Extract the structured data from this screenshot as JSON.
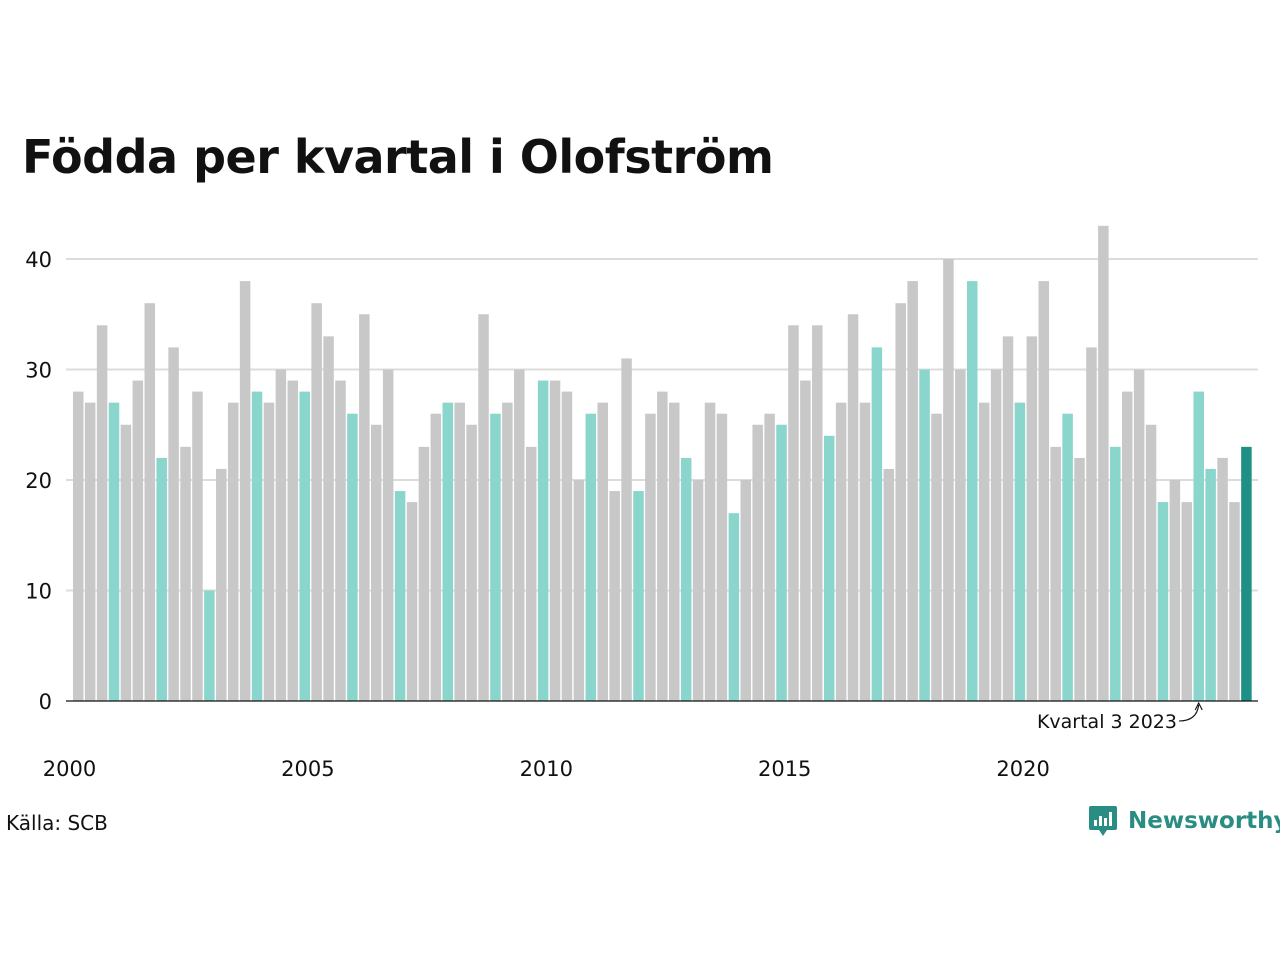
{
  "chart_data": {
    "type": "bar",
    "title": "Födda per kvartal i Olofström",
    "xlabel": "",
    "ylabel": "",
    "ylim": [
      0,
      45
    ],
    "y_ticks": [
      0,
      10,
      20,
      30,
      40
    ],
    "x_tick_labels": [
      "2000",
      "2005",
      "2010",
      "2015",
      "2020"
    ],
    "x_tick_years": [
      2000,
      2005,
      2010,
      2015,
      2020
    ],
    "start_year": 2000,
    "highlight_quarter": 4,
    "grid": true,
    "categories": [
      "2000 Q1",
      "2000 Q2",
      "2000 Q3",
      "2000 Q4",
      "2001 Q1",
      "2001 Q2",
      "2001 Q3",
      "2001 Q4",
      "2002 Q1",
      "2002 Q2",
      "2002 Q3",
      "2002 Q4",
      "2003 Q1",
      "2003 Q2",
      "2003 Q3",
      "2003 Q4",
      "2004 Q1",
      "2004 Q2",
      "2004 Q3",
      "2004 Q4",
      "2005 Q1",
      "2005 Q2",
      "2005 Q3",
      "2005 Q4",
      "2006 Q1",
      "2006 Q2",
      "2006 Q3",
      "2006 Q4",
      "2007 Q1",
      "2007 Q2",
      "2007 Q3",
      "2007 Q4",
      "2008 Q1",
      "2008 Q2",
      "2008 Q3",
      "2008 Q4",
      "2009 Q1",
      "2009 Q2",
      "2009 Q3",
      "2009 Q4",
      "2010 Q1",
      "2010 Q2",
      "2010 Q3",
      "2010 Q4",
      "2011 Q1",
      "2011 Q2",
      "2011 Q3",
      "2011 Q4",
      "2012 Q1",
      "2012 Q2",
      "2012 Q3",
      "2012 Q4",
      "2013 Q1",
      "2013 Q2",
      "2013 Q3",
      "2013 Q4",
      "2014 Q1",
      "2014 Q2",
      "2014 Q3",
      "2014 Q4",
      "2015 Q1",
      "2015 Q2",
      "2015 Q3",
      "2015 Q4",
      "2016 Q1",
      "2016 Q2",
      "2016 Q3",
      "2016 Q4",
      "2017 Q1",
      "2017 Q2",
      "2017 Q3",
      "2017 Q4",
      "2018 Q1",
      "2018 Q2",
      "2018 Q3",
      "2018 Q4",
      "2019 Q1",
      "2019 Q2",
      "2019 Q3",
      "2019 Q4",
      "2020 Q1",
      "2020 Q2",
      "2020 Q3",
      "2020 Q4",
      "2021 Q1",
      "2021 Q2",
      "2021 Q3",
      "2021 Q4",
      "2022 Q1",
      "2022 Q2",
      "2022 Q3",
      "2022 Q4",
      "2023 Q1",
      "2023 Q2",
      "2023 Q3",
      "2023 Q4",
      "2024 Q1",
      "2024 Q2",
      "2024 Q3"
    ],
    "values": [
      28,
      27,
      34,
      27,
      25,
      29,
      36,
      22,
      32,
      23,
      28,
      10,
      21,
      27,
      38,
      28,
      27,
      30,
      29,
      28,
      36,
      33,
      29,
      26,
      35,
      25,
      30,
      19,
      18,
      23,
      26,
      27,
      27,
      25,
      35,
      26,
      27,
      30,
      23,
      29,
      29,
      28,
      20,
      26,
      27,
      19,
      31,
      19,
      26,
      28,
      27,
      22,
      20,
      27,
      26,
      17,
      20,
      25,
      26,
      25,
      34,
      29,
      34,
      24,
      27,
      35,
      27,
      32,
      21,
      36,
      38,
      30,
      26,
      40,
      30,
      38,
      27,
      30,
      33,
      27,
      33,
      38,
      23,
      26,
      22,
      32,
      43,
      23,
      28,
      30,
      25,
      18,
      20,
      18,
      28,
      21,
      22,
      18,
      23
    ],
    "annotation": "Kvartal 3 2023",
    "annotation_category": "2023 Q3"
  },
  "colors": {
    "gray_bar": "#c8c8c8",
    "highlight_bar": "#8ad5cc",
    "latest_bar": "#1e9085",
    "grid": "#dcdcdc",
    "axis": "#111111",
    "brand": "#2a8d83"
  },
  "source": "Källa: SCB",
  "brand": {
    "name": "Newsworthy",
    "icon": "newsworthy-logo-icon"
  }
}
